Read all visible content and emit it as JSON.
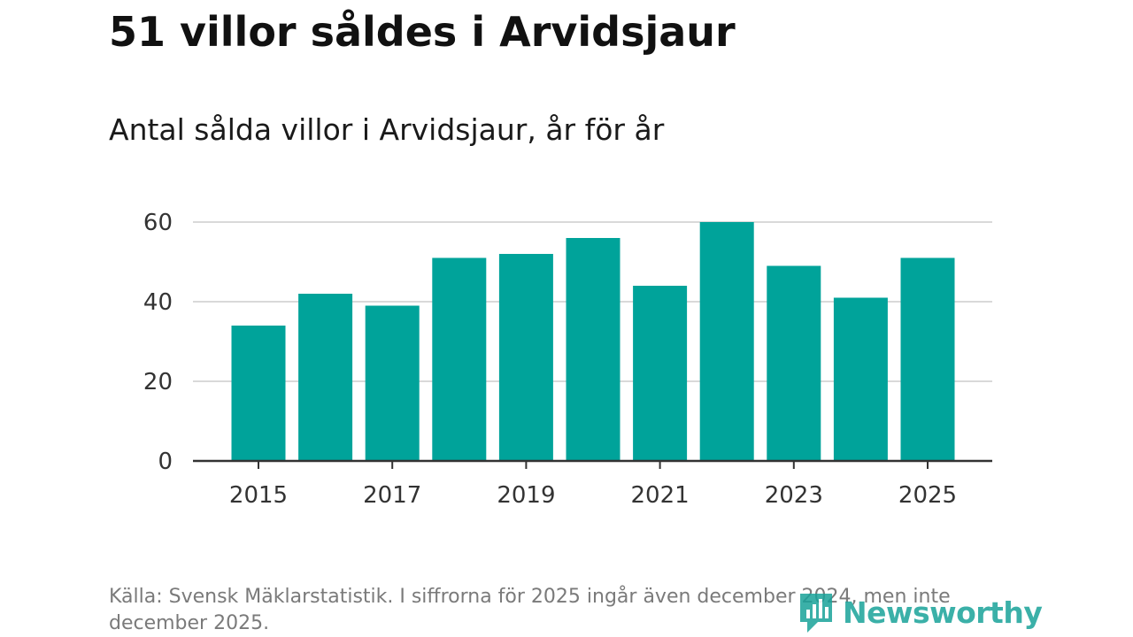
{
  "title": "51 villor såldes i Arvidsjaur",
  "subtitle": "Antal sålda villor i Arvidsjaur, år för år",
  "source": "Källa: Svensk Mäklarstatistik. I siffrorna för 2025 ingår även december 2024, men inte december 2025.",
  "brand": {
    "name": "Newsworthy",
    "color": "#19a39a"
  },
  "colors": {
    "bar": "#00a39a",
    "grid": "#d9d9d9",
    "axis": "#333333"
  },
  "chart_data": {
    "type": "bar",
    "title": "Antal sålda villor i Arvidsjaur, år för år",
    "xlabel": "",
    "ylabel": "",
    "categories": [
      2015,
      2016,
      2017,
      2018,
      2019,
      2020,
      2021,
      2022,
      2023,
      2024,
      2025
    ],
    "values": [
      34,
      42,
      39,
      51,
      52,
      56,
      44,
      60,
      49,
      41,
      51
    ],
    "x_tick_labels": [
      "2015",
      "2017",
      "2019",
      "2021",
      "2023",
      "2025"
    ],
    "y_ticks": [
      0,
      20,
      40,
      60
    ],
    "y_tick_labels": [
      "0",
      "20",
      "40",
      "60"
    ],
    "ylim": [
      0,
      60
    ],
    "grid": true,
    "legend": "none"
  }
}
